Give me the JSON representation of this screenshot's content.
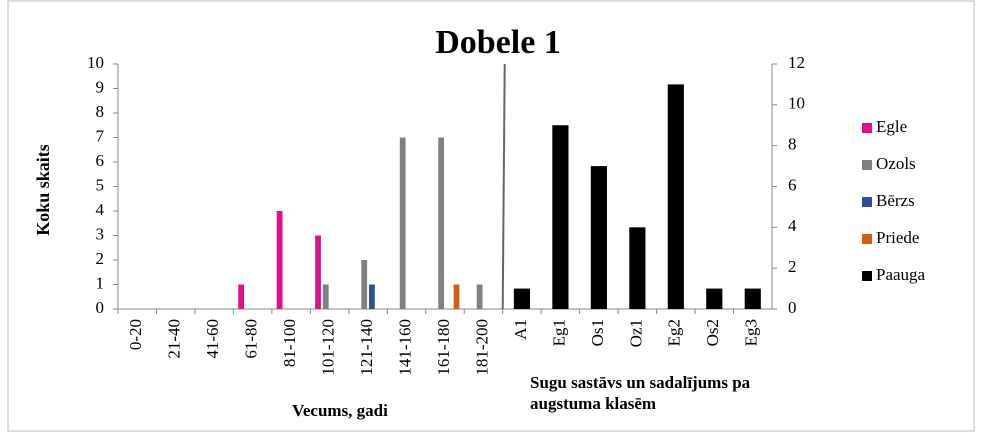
{
  "chart_data": {
    "type": "bar",
    "title": "Dobele 1",
    "ylabel": "Koku skaits",
    "xlabel": "Vecums, gadi",
    "xlabel2": [
      "Sugu sastāvs un sadalījums  pa",
      "augstuma klasēm"
    ],
    "categories": [
      "0-20",
      "21-40",
      "41-60",
      "61-80",
      "81-100",
      "101-120",
      "121-140",
      "141-160",
      "161-180",
      "181-200",
      "A1",
      "Eg1",
      "Os1",
      "Oz1",
      "Eg2",
      "Os2",
      "Eg3"
    ],
    "series": [
      {
        "name": "Egle",
        "color": "#e0108c",
        "values": [
          null,
          null,
          null,
          1,
          4,
          3,
          null,
          null,
          null,
          null,
          null,
          null,
          null,
          null,
          null,
          null,
          null
        ]
      },
      {
        "name": "Ozols",
        "color": "#808080",
        "values": [
          null,
          null,
          null,
          null,
          null,
          1,
          2,
          7,
          7,
          1,
          null,
          null,
          null,
          null,
          null,
          null,
          null
        ]
      },
      {
        "name": "Bērzs",
        "color": "#2e4f9e",
        "values": [
          null,
          null,
          null,
          null,
          null,
          null,
          1,
          null,
          null,
          null,
          null,
          null,
          null,
          null,
          null,
          null,
          null
        ]
      },
      {
        "name": "Priede",
        "color": "#d2600f",
        "values": [
          null,
          null,
          null,
          null,
          null,
          null,
          null,
          null,
          1,
          null,
          null,
          null,
          null,
          null,
          null,
          null,
          null
        ]
      },
      {
        "name": "Paauga",
        "color": "#000000",
        "axis": "y2",
        "values": [
          null,
          null,
          null,
          null,
          null,
          null,
          null,
          null,
          null,
          null,
          1,
          9,
          7,
          4,
          11,
          1,
          1
        ]
      }
    ],
    "ylim": [
      0,
      10
    ],
    "yticks": [
      0,
      1,
      2,
      3,
      4,
      5,
      6,
      7,
      8,
      9,
      10
    ],
    "y2lim": [
      0,
      12
    ],
    "y2ticks": [
      0,
      2,
      4,
      6,
      8,
      10,
      12
    ],
    "legend": "right"
  }
}
